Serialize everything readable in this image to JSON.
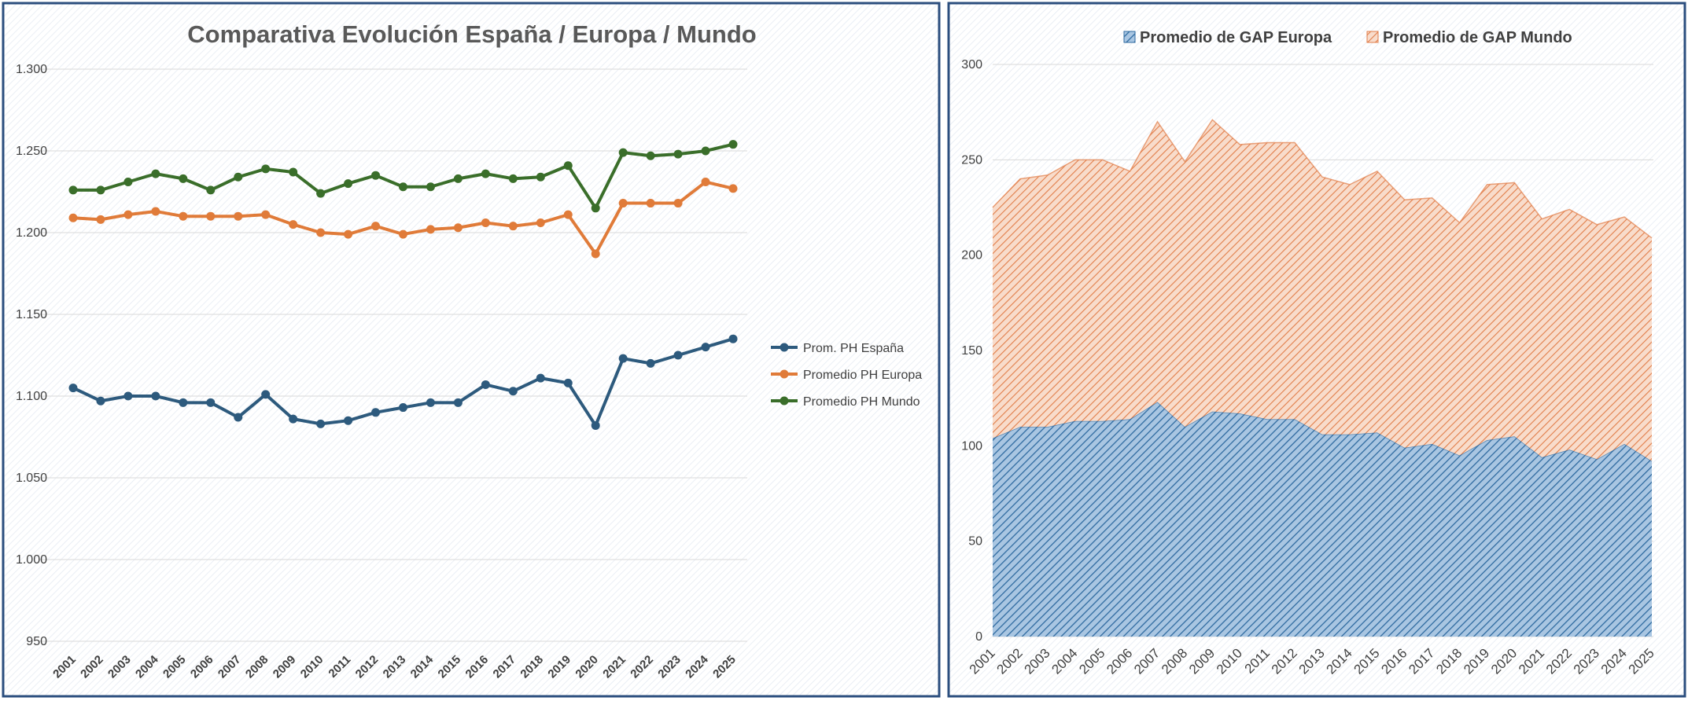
{
  "chart_data": [
    {
      "type": "line",
      "title": "Comparativa Evolución España / Europa / Mundo",
      "xlabel": "",
      "ylabel": "",
      "categories": [
        "2001",
        "2002",
        "2003",
        "2004",
        "2005",
        "2006",
        "2007",
        "2008",
        "2009",
        "2010",
        "2011",
        "2012",
        "2013",
        "2014",
        "2015",
        "2016",
        "2017",
        "2018",
        "2019",
        "2020",
        "2021",
        "2022",
        "2023",
        "2024",
        "2025"
      ],
      "ylim": [
        950,
        1300
      ],
      "yticks": [
        950,
        1000,
        1050,
        1100,
        1150,
        1200,
        1250,
        1300
      ],
      "ytick_labels": [
        "950",
        "1.000",
        "1.050",
        "1.100",
        "1.150",
        "1.200",
        "1.250",
        "1.300"
      ],
      "grid": true,
      "legend_position": "right",
      "series": [
        {
          "name": "Prom. PH España",
          "color": "#2d5a7d",
          "values": [
            1105,
            1097,
            1100,
            1100,
            1096,
            1096,
            1087,
            1101,
            1086,
            1083,
            1085,
            1090,
            1093,
            1096,
            1096,
            1107,
            1103,
            1111,
            1108,
            1082,
            1123,
            1120,
            1125,
            1130,
            1135
          ]
        },
        {
          "name": "Promedio PH Europa",
          "color": "#e07b39",
          "values": [
            1209,
            1208,
            1211,
            1213,
            1210,
            1210,
            1210,
            1211,
            1205,
            1200,
            1199,
            1204,
            1199,
            1202,
            1203,
            1206,
            1204,
            1206,
            1211,
            1187,
            1218,
            1218,
            1218,
            1231,
            1227
          ]
        },
        {
          "name": "Promedio PH Mundo",
          "color": "#3a6e2a",
          "values": [
            1226,
            1226,
            1231,
            1236,
            1233,
            1226,
            1234,
            1239,
            1237,
            1224,
            1230,
            1235,
            1228,
            1228,
            1233,
            1236,
            1233,
            1234,
            1241,
            1215,
            1249,
            1247,
            1248,
            1250,
            1254
          ]
        }
      ]
    },
    {
      "type": "area",
      "stacked": true,
      "title": "",
      "xlabel": "",
      "ylabel": "",
      "categories": [
        "2001",
        "2002",
        "2003",
        "2004",
        "2005",
        "2006",
        "2007",
        "2008",
        "2009",
        "2010",
        "2011",
        "2012",
        "2013",
        "2014",
        "2015",
        "2016",
        "2017",
        "2018",
        "2019",
        "2020",
        "2021",
        "2022",
        "2023",
        "2024",
        "2025"
      ],
      "ylim": [
        0,
        300
      ],
      "yticks": [
        0,
        50,
        100,
        150,
        200,
        250,
        300
      ],
      "ytick_labels": [
        "0",
        "50",
        "100",
        "150",
        "200",
        "250",
        "300"
      ],
      "grid": true,
      "legend_position": "top",
      "series": [
        {
          "name": "Promedio de GAP Europa",
          "color": "#3a7ab5",
          "values": [
            104,
            110,
            110,
            113,
            113,
            114,
            123,
            110,
            118,
            117,
            114,
            114,
            106,
            106,
            107,
            99,
            101,
            95,
            103,
            105,
            94,
            98,
            93,
            101,
            92
          ]
        },
        {
          "name": "Promedio de GAP Mundo",
          "color": "#e8895a",
          "values": [
            121,
            130,
            132,
            137,
            137,
            130,
            147,
            139,
            153,
            141,
            145,
            145,
            135,
            131,
            137,
            130,
            129,
            122,
            134,
            133,
            125,
            126,
            123,
            119,
            117
          ]
        }
      ]
    }
  ]
}
